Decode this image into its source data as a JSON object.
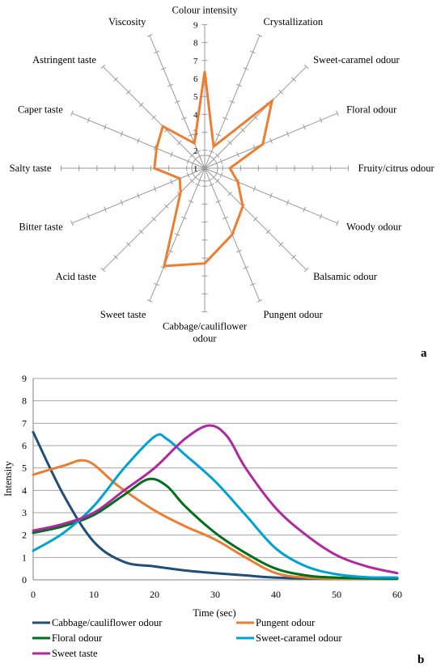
{
  "chart_data": [
    {
      "type": "radar",
      "panel_label": "a",
      "axes": [
        "Colour intensity",
        "Crystallization",
        "Sweet-caramel odour",
        "Floral odour",
        "Fruity/citrus odour",
        "Woody odour",
        "Balsamic odour",
        "Pungent odour",
        "Cabbage/cauliflower odour",
        "Sweet taste",
        "Acid taste",
        "Bitter taste",
        "Salty taste",
        "Caper taste",
        "Astringent taste",
        "Viscosity"
      ],
      "values": [
        6.4,
        2.3,
        6.3,
        4.5,
        2.4,
        3.0,
        4.0,
        5.0,
        6.3,
        6.9,
        2.9,
        2.5,
        3.8,
        3.9,
        4.3,
        2.5
      ],
      "rlim": [
        1,
        9
      ],
      "ticks": [
        "1",
        "2",
        "3",
        "4",
        "5",
        "6",
        "7",
        "8",
        "9"
      ],
      "series_color": "#ED7D31"
    },
    {
      "type": "line",
      "panel_label": "b",
      "xlabel": "Time (sec)",
      "ylabel": "Intensity",
      "xlim": [
        0,
        60
      ],
      "ylim": [
        0,
        9
      ],
      "xticks": [
        "0",
        "10",
        "20",
        "30",
        "40",
        "50",
        "60"
      ],
      "yticks": [
        "0",
        "1",
        "2",
        "3",
        "4",
        "5",
        "6",
        "7",
        "8",
        "9"
      ],
      "grid": "horizontal",
      "legend": "bottom",
      "series": [
        {
          "name": "Cabbage/cauliflower odour",
          "color": "#1F4E79",
          "points": [
            [
              0,
              6.6
            ],
            [
              5,
              3.8
            ],
            [
              10,
              1.7
            ],
            [
              15,
              0.8
            ],
            [
              20,
              0.6
            ],
            [
              25,
              0.42
            ],
            [
              30,
              0.3
            ],
            [
              35,
              0.2
            ],
            [
              40,
              0.1
            ],
            [
              50,
              0.05
            ],
            [
              60,
              0.05
            ]
          ]
        },
        {
          "name": "Pungent odour",
          "color": "#ED7D31",
          "points": [
            [
              0,
              4.7
            ],
            [
              5,
              5.1
            ],
            [
              9,
              5.3
            ],
            [
              14,
              4.2
            ],
            [
              20,
              3.1
            ],
            [
              25,
              2.4
            ],
            [
              30,
              1.8
            ],
            [
              35,
              1.0
            ],
            [
              40,
              0.3
            ],
            [
              45,
              0.1
            ],
            [
              50,
              0.05
            ],
            [
              60,
              0.05
            ]
          ]
        },
        {
          "name": "Floral odour",
          "color": "#00701A",
          "points": [
            [
              0,
              2.1
            ],
            [
              5,
              2.4
            ],
            [
              10,
              2.9
            ],
            [
              15,
              3.8
            ],
            [
              19,
              4.5
            ],
            [
              22,
              4.2
            ],
            [
              25,
              3.3
            ],
            [
              30,
              2.1
            ],
            [
              35,
              1.2
            ],
            [
              40,
              0.5
            ],
            [
              45,
              0.2
            ],
            [
              50,
              0.1
            ],
            [
              60,
              0.05
            ]
          ]
        },
        {
          "name": "Sweet-caramel odour",
          "color": "#00A2D6",
          "points": [
            [
              0,
              1.3
            ],
            [
              5,
              2.1
            ],
            [
              10,
              3.3
            ],
            [
              15,
              5.0
            ],
            [
              20,
              6.4
            ],
            [
              22,
              6.3
            ],
            [
              25,
              5.6
            ],
            [
              30,
              4.4
            ],
            [
              35,
              2.9
            ],
            [
              40,
              1.4
            ],
            [
              45,
              0.6
            ],
            [
              50,
              0.25
            ],
            [
              55,
              0.12
            ],
            [
              60,
              0.1
            ]
          ]
        },
        {
          "name": "Sweet taste",
          "color": "#B0289E",
          "points": [
            [
              0,
              2.2
            ],
            [
              5,
              2.5
            ],
            [
              10,
              3.0
            ],
            [
              15,
              4.0
            ],
            [
              20,
              5.0
            ],
            [
              25,
              6.3
            ],
            [
              29,
              6.9
            ],
            [
              32,
              6.4
            ],
            [
              35,
              5.0
            ],
            [
              40,
              3.2
            ],
            [
              45,
              2.0
            ],
            [
              50,
              1.1
            ],
            [
              55,
              0.6
            ],
            [
              60,
              0.3
            ]
          ]
        }
      ]
    }
  ]
}
